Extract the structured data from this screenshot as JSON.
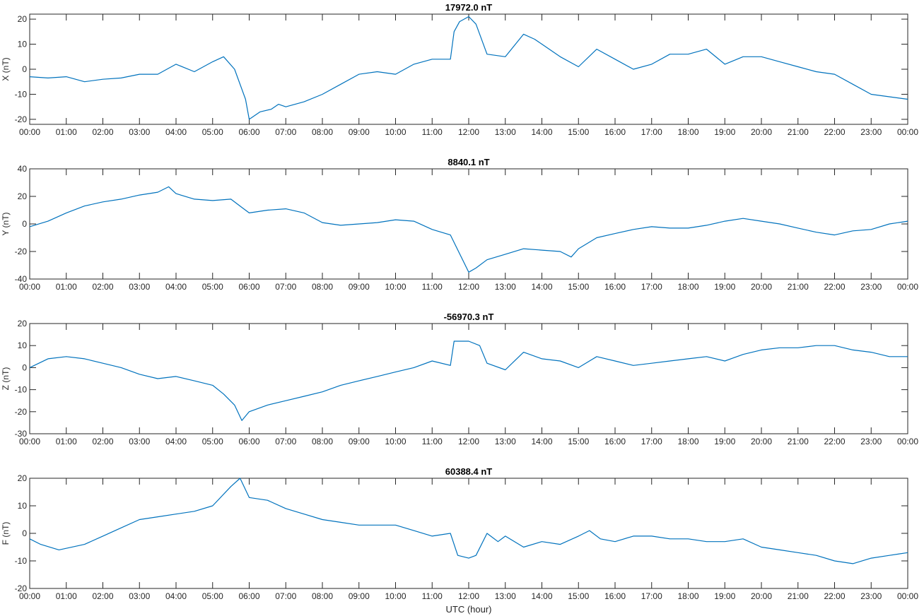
{
  "xlabel": "UTC (hour)",
  "chart_data": [
    {
      "type": "line",
      "title": "17972.0 nT",
      "ylabel": "X (nT)",
      "ylim": [
        -22,
        22
      ],
      "yticks": [
        -20,
        -10,
        0,
        10,
        20
      ],
      "xticks": [
        "00:00",
        "01:00",
        "02:00",
        "03:00",
        "04:00",
        "05:00",
        "06:00",
        "07:00",
        "08:00",
        "09:00",
        "10:00",
        "11:00",
        "12:00",
        "13:00",
        "14:00",
        "15:00",
        "16:00",
        "17:00",
        "18:00",
        "19:00",
        "20:00",
        "21:00",
        "22:00",
        "23:00",
        "00:00"
      ],
      "x": [
        0,
        0.5,
        1,
        1.5,
        2,
        2.5,
        3,
        3.5,
        4,
        4.5,
        5,
        5.3,
        5.6,
        5.9,
        6,
        6.3,
        6.6,
        6.8,
        7,
        7.5,
        8,
        8.5,
        9,
        9.5,
        10,
        10.5,
        11,
        11.5,
        11.6,
        11.75,
        12,
        12.2,
        12.5,
        13,
        13.5,
        13.8,
        14,
        14.5,
        15,
        15.5,
        16,
        16.5,
        17,
        17.5,
        18,
        18.5,
        19,
        19.5,
        20,
        20.5,
        21,
        21.5,
        22,
        22.5,
        23,
        23.5,
        24
      ],
      "series": [
        {
          "values": [
            -3,
            -3.5,
            -3,
            -5,
            -4,
            -3.5,
            -2,
            -2,
            2,
            -1,
            3,
            5,
            0,
            -12,
            -20,
            -17,
            -16,
            -14,
            -15,
            -13,
            -10,
            -6,
            -2,
            -1,
            -2,
            2,
            4,
            4,
            15,
            19,
            21,
            18,
            6,
            5,
            14,
            12,
            10,
            5,
            1,
            8,
            4,
            0,
            2,
            6,
            6,
            8,
            2,
            5,
            5,
            3,
            1,
            -1,
            -2,
            -6,
            -10,
            -11,
            -12
          ]
        }
      ]
    },
    {
      "type": "line",
      "title": "8840.1 nT",
      "ylabel": "Y (nT)",
      "ylim": [
        -40,
        40
      ],
      "yticks": [
        -40,
        -20,
        0,
        20,
        40
      ],
      "xticks": [
        "00:00",
        "01:00",
        "02:00",
        "03:00",
        "04:00",
        "05:00",
        "06:00",
        "07:00",
        "08:00",
        "09:00",
        "10:00",
        "11:00",
        "12:00",
        "13:00",
        "14:00",
        "15:00",
        "16:00",
        "17:00",
        "18:00",
        "19:00",
        "20:00",
        "21:00",
        "22:00",
        "23:00",
        "00:00"
      ],
      "x": [
        0,
        0.5,
        1,
        1.5,
        2,
        2.5,
        3,
        3.5,
        3.8,
        4,
        4.5,
        5,
        5.5,
        5.8,
        6,
        6.5,
        7,
        7.5,
        8,
        8.5,
        9,
        9.5,
        10,
        10.5,
        11,
        11.5,
        12,
        12.2,
        12.5,
        13,
        13.5,
        14,
        14.5,
        14.8,
        15,
        15.5,
        16,
        16.5,
        17,
        17.5,
        18,
        18.5,
        19,
        19.5,
        20,
        20.5,
        21,
        21.5,
        22,
        22.5,
        23,
        23.5,
        24
      ],
      "series": [
        {
          "values": [
            -2,
            2,
            8,
            13,
            16,
            18,
            21,
            23,
            27,
            22,
            18,
            17,
            18,
            12,
            8,
            10,
            11,
            8,
            1,
            -1,
            0,
            1,
            3,
            2,
            -4,
            -8,
            -35,
            -32,
            -26,
            -22,
            -18,
            -19,
            -20,
            -24,
            -18,
            -10,
            -7,
            -4,
            -2,
            -3,
            -3,
            -1,
            2,
            4,
            2,
            0,
            -3,
            -6,
            -8,
            -5,
            -4,
            0,
            2
          ]
        }
      ]
    },
    {
      "type": "line",
      "title": "-56970.3 nT",
      "ylabel": "Z (nT)",
      "ylim": [
        -30,
        20
      ],
      "yticks": [
        -30,
        -20,
        -10,
        0,
        10,
        20
      ],
      "xticks": [
        "00:00",
        "01:00",
        "02:00",
        "03:00",
        "04:00",
        "05:00",
        "06:00",
        "07:00",
        "08:00",
        "09:00",
        "10:00",
        "11:00",
        "12:00",
        "13:00",
        "14:00",
        "15:00",
        "16:00",
        "17:00",
        "18:00",
        "19:00",
        "20:00",
        "21:00",
        "22:00",
        "23:00",
        "00:00"
      ],
      "x": [
        0,
        0.5,
        1,
        1.5,
        2,
        2.5,
        3,
        3.5,
        4,
        4.5,
        5,
        5.3,
        5.6,
        5.8,
        6,
        6.5,
        7,
        7.5,
        8,
        8.5,
        9,
        9.5,
        10,
        10.5,
        11,
        11.5,
        11.6,
        12,
        12.3,
        12.5,
        13,
        13.5,
        14,
        14.5,
        15,
        15.5,
        16,
        16.5,
        17,
        17.5,
        18,
        18.5,
        19,
        19.5,
        20,
        20.5,
        21,
        21.5,
        22,
        22.5,
        23,
        23.5,
        24
      ],
      "series": [
        {
          "values": [
            0,
            4,
            5,
            4,
            2,
            0,
            -3,
            -5,
            -4,
            -6,
            -8,
            -12,
            -17,
            -24,
            -20,
            -17,
            -15,
            -13,
            -11,
            -8,
            -6,
            -4,
            -2,
            0,
            3,
            1,
            12,
            12,
            10,
            2,
            -1,
            7,
            4,
            3,
            0,
            5,
            3,
            1,
            2,
            3,
            4,
            5,
            3,
            6,
            8,
            9,
            9,
            10,
            10,
            8,
            7,
            5,
            5
          ]
        }
      ]
    },
    {
      "type": "line",
      "title": "60388.4 nT",
      "ylabel": "F (nT)",
      "ylim": [
        -20,
        20
      ],
      "yticks": [
        -20,
        -10,
        0,
        10,
        20
      ],
      "xticks": [
        "00:00",
        "01:00",
        "02:00",
        "03:00",
        "04:00",
        "05:00",
        "06:00",
        "07:00",
        "08:00",
        "09:00",
        "10:00",
        "11:00",
        "12:00",
        "13:00",
        "14:00",
        "15:00",
        "16:00",
        "17:00",
        "18:00",
        "19:00",
        "20:00",
        "21:00",
        "22:00",
        "23:00",
        "00:00"
      ],
      "x": [
        0,
        0.3,
        0.8,
        1.5,
        2,
        2.5,
        3,
        3.5,
        4,
        4.5,
        5,
        5.5,
        5.75,
        6,
        6.5,
        7,
        7.5,
        8,
        8.5,
        9,
        9.5,
        10,
        10.5,
        11,
        11.5,
        11.7,
        12,
        12.2,
        12.5,
        12.8,
        13,
        13.5,
        14,
        14.5,
        15,
        15.3,
        15.6,
        16,
        16.5,
        17,
        17.5,
        18,
        18.5,
        19,
        19.5,
        20,
        20.5,
        21,
        21.5,
        22,
        22.5,
        23,
        23.5,
        24
      ],
      "series": [
        {
          "values": [
            -2,
            -4,
            -6,
            -4,
            -1,
            2,
            5,
            6,
            7,
            8,
            10,
            17,
            20,
            13,
            12,
            9,
            7,
            5,
            4,
            3,
            3,
            3,
            1,
            -1,
            0,
            -8,
            -9,
            -8,
            0,
            -3,
            -1,
            -5,
            -3,
            -4,
            -1,
            1,
            -2,
            -3,
            -1,
            -1,
            -2,
            -2,
            -3,
            -3,
            -2,
            -5,
            -6,
            -7,
            -8,
            -10,
            -11,
            -9,
            -8,
            -7
          ]
        }
      ]
    }
  ],
  "colors": {
    "line": "#0072BD",
    "axis": "#262626"
  }
}
